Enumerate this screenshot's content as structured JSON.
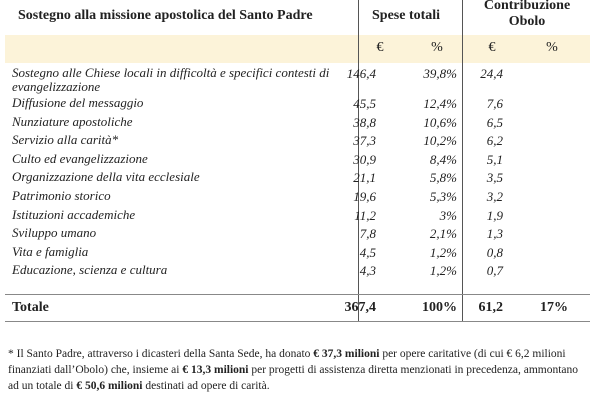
{
  "header": {
    "title": "Sostegno alla missione apostolica del Santo Padre",
    "spese": "Spese totali",
    "contrib": "Contribuzione Obolo",
    "units": [
      "€",
      "%",
      "€",
      "%"
    ]
  },
  "table": {
    "rows": [
      [
        "Sostegno alle Chiese locali in difficoltà e specifici contesti di evangelizzazione",
        "146,4",
        "39,8%",
        "24,4"
      ],
      [
        "Diffusione del messaggio",
        "45,5",
        "12,4%",
        "7,6"
      ],
      [
        "Nunziature apostoliche",
        "38,8",
        "10,6%",
        "6,5"
      ],
      [
        "Servizio alla carità*",
        "37,3",
        "10,2%",
        "6,2"
      ],
      [
        "Culto ed evangelizzazione",
        "30,9",
        "8,4%",
        "5,1"
      ],
      [
        "Organizzazione della vita ecclesiale",
        "21,1",
        "5,8%",
        "3,5"
      ],
      [
        "Patrimonio storico",
        "19,6",
        "5,3%",
        "3,2"
      ],
      [
        "Istituzioni accademiche",
        "11,2",
        "3%",
        "1,9"
      ],
      [
        "Sviluppo umano",
        "7,8",
        "2,1%",
        "1,3"
      ],
      [
        "Vita e famiglia",
        "4,5",
        "1,2%",
        "0,8"
      ],
      [
        "Educazione, scienza e cultura",
        "4,3",
        "1,2%",
        "0,7"
      ]
    ],
    "total": [
      "Totale",
      "367,4",
      "100%",
      "61,2",
      "17%"
    ]
  },
  "footnote": {
    "parts": [
      "* Il Santo Padre, attraverso i dicasteri della Santa Sede, ha donato ",
      "€ 37,3 milioni",
      " per opere caritative (di cui € 6,2 milioni finanziati dall’Obolo) che, insieme ai ",
      "€ 13,3 milioni",
      " per progetti di assistenza diretta menzionati in precedenza, ammontano ad un totale di ",
      "€ 50,6 milioni",
      " destinati ad opere di carità."
    ]
  }
}
